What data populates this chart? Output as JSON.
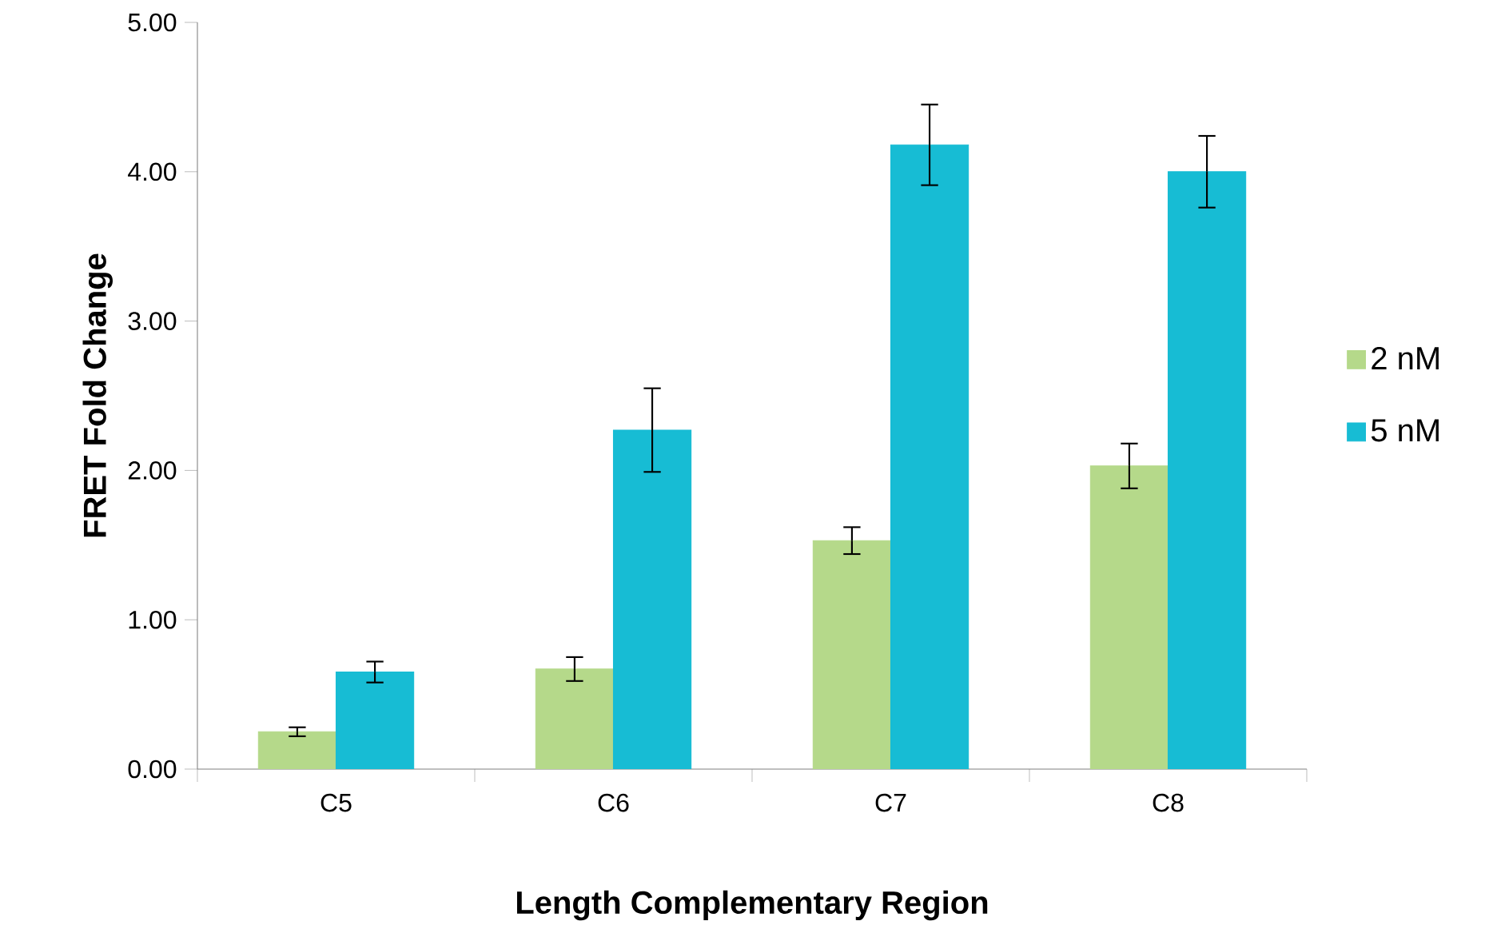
{
  "chart_data": {
    "type": "bar",
    "xlabel": "Length Complementary Region",
    "ylabel": "FRET Fold Change",
    "categories": [
      "C5",
      "C6",
      "C7",
      "C8"
    ],
    "series": [
      {
        "name": "2 nM",
        "color": "#b5d98a",
        "values": [
          0.25,
          0.67,
          1.53,
          2.03
        ],
        "errors": [
          0.03,
          0.08,
          0.09,
          0.15
        ]
      },
      {
        "name": "5 nM",
        "color": "#17bcd4",
        "values": [
          0.65,
          2.27,
          4.18,
          4.0
        ],
        "errors": [
          0.07,
          0.28,
          0.27,
          0.24
        ]
      }
    ],
    "ylim": [
      0,
      5
    ],
    "yticks": [
      {
        "value": 0,
        "label": "0.00"
      },
      {
        "value": 1,
        "label": "1.00"
      },
      {
        "value": 2,
        "label": "2.00"
      },
      {
        "value": 3,
        "label": "3.00"
      },
      {
        "value": 4,
        "label": "4.00"
      },
      {
        "value": 5,
        "label": "5.00"
      }
    ],
    "grid": false,
    "legend": "right"
  }
}
